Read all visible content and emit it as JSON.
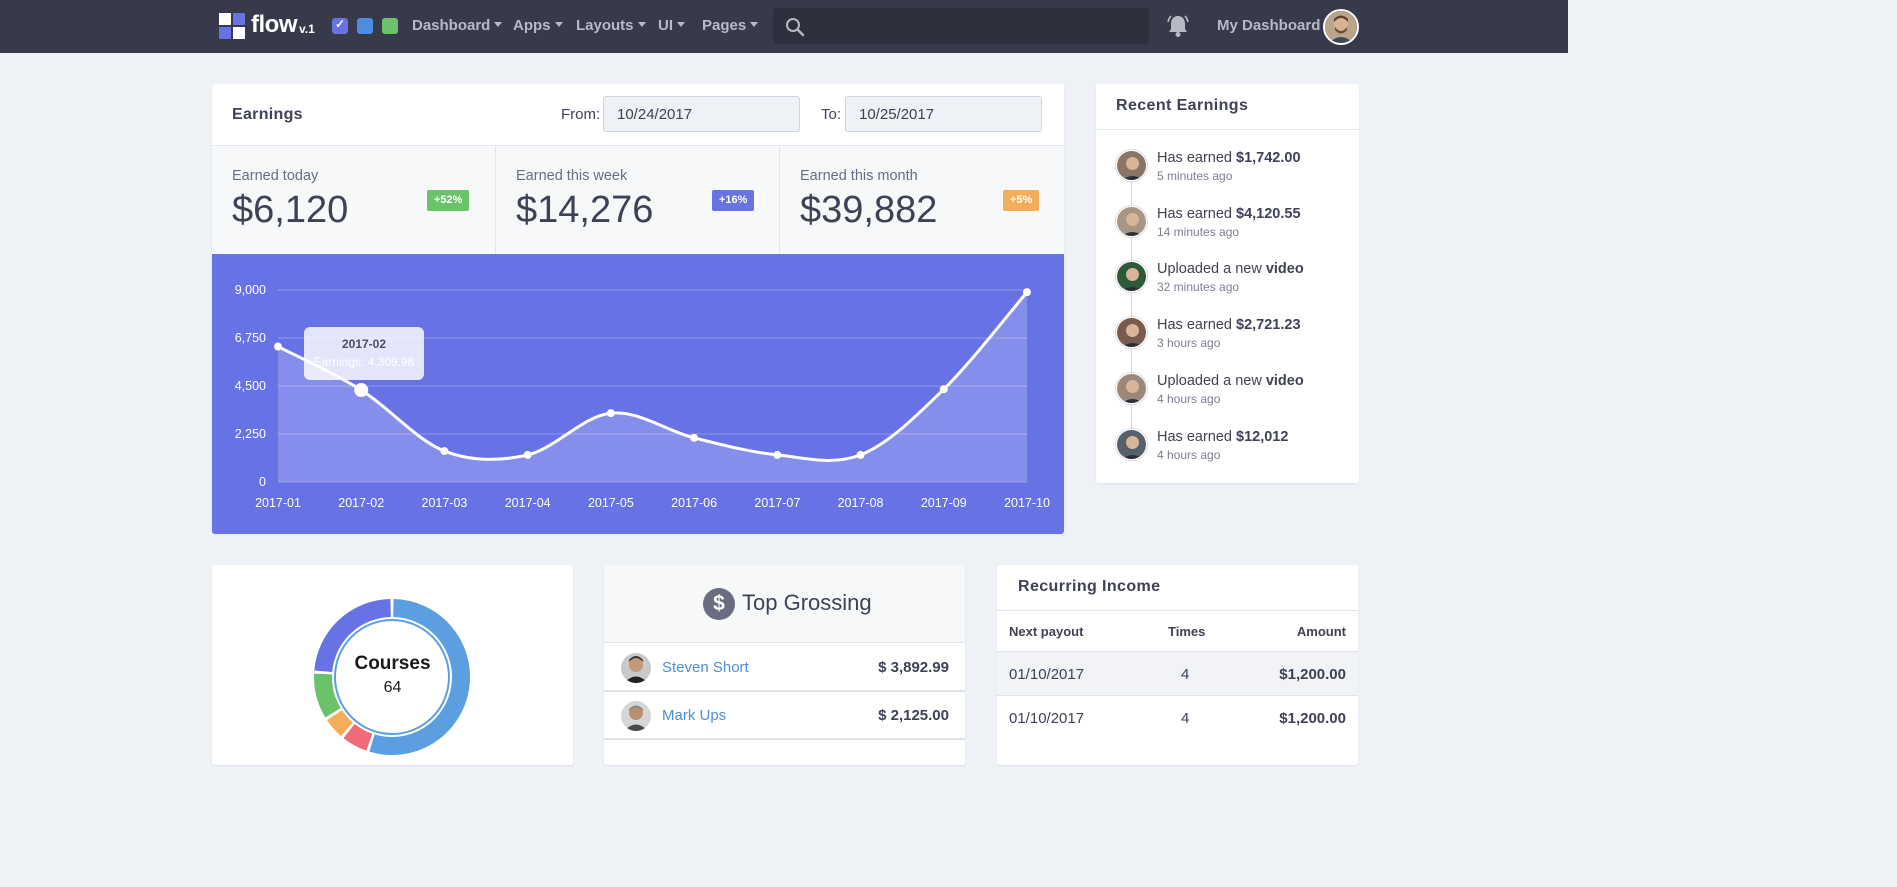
{
  "app": {
    "brand": "flow",
    "version": "v.1",
    "swatches": [
      "#6772e5",
      "#4c8dde",
      "#6cc26a"
    ]
  },
  "nav": {
    "items": [
      {
        "label": "Dashboard"
      },
      {
        "label": "Apps"
      },
      {
        "label": "Layouts"
      },
      {
        "label": "UI"
      },
      {
        "label": "Pages"
      }
    ],
    "search_placeholder": "",
    "user_label": "My Dashboard"
  },
  "earnings": {
    "title": "Earnings",
    "from_label": "From:",
    "from_value": "10/24/2017",
    "to_label": "To:",
    "to_value": "10/25/2017",
    "stats": [
      {
        "label": "Earned today",
        "value": "$6,120",
        "badge": "+52%",
        "badge_color": "#6cc26a"
      },
      {
        "label": "Earned this week",
        "value": "$14,276",
        "badge": "+16%",
        "badge_color": "#6772e5"
      },
      {
        "label": "Earned this month",
        "value": "$39,882",
        "badge": "+5%",
        "badge_color": "#f4ad5a"
      }
    ],
    "tooltip": {
      "title": "2017-02",
      "text": "Earnings: 4,309.98"
    }
  },
  "chart_data": {
    "type": "area",
    "categories": [
      "2017-01",
      "2017-02",
      "2017-03",
      "2017-04",
      "2017-05",
      "2017-06",
      "2017-07",
      "2017-08",
      "2017-09",
      "2017-10"
    ],
    "series": [
      {
        "values": [
          6350,
          4309.98,
          1450,
          1270,
          3230,
          2070,
          1270,
          1270,
          4350,
          8900
        ]
      }
    ],
    "yticks": [
      "9,000",
      "6,750",
      "4,500",
      "2,250",
      "0"
    ],
    "ylim": [
      0,
      9000
    ],
    "grid": true,
    "background": "#6772e5",
    "line_color": "#ffffff"
  },
  "recent": {
    "title": "Recent Earnings",
    "items": [
      {
        "prefix": "Has earned ",
        "strong": "$1,742.00",
        "time": "5 minutes ago",
        "avatar_color": "#8a7564"
      },
      {
        "prefix": "Has earned ",
        "strong": "$4,120.55",
        "time": "14 minutes ago",
        "avatar_color": "#a89684"
      },
      {
        "prefix": "Uploaded a new ",
        "strong": "video",
        "time": "32 minutes ago",
        "avatar_color": "#2f5a3a"
      },
      {
        "prefix": "Has earned ",
        "strong": "$2,721.23",
        "time": "3 hours ago",
        "avatar_color": "#7a5a4c"
      },
      {
        "prefix": "Uploaded a new ",
        "strong": "video",
        "time": "4 hours ago",
        "avatar_color": "#9b8878"
      },
      {
        "prefix": "Has earned ",
        "strong": "$12,012",
        "time": "4 hours ago",
        "avatar_color": "#56606b"
      }
    ]
  },
  "courses": {
    "title": "Courses",
    "value": "64",
    "segments": [
      {
        "color": "#5b9fe0",
        "fraction": 0.55
      },
      {
        "color": "#f16a7a",
        "fraction": 0.06
      },
      {
        "color": "#f4ad5a",
        "fraction": 0.05
      },
      {
        "color": "#6cc26a",
        "fraction": 0.1
      },
      {
        "color": "#6772e5",
        "fraction": 0.24
      }
    ]
  },
  "top_grossing": {
    "title": "Top Grossing",
    "icon": "dollar-icon",
    "rows": [
      {
        "name": "Steven Short",
        "amount": "$ 3,892.99"
      },
      {
        "name": "Mark Ups",
        "amount": "$ 2,125.00"
      }
    ]
  },
  "recurring": {
    "title": "Recurring Income",
    "headers": [
      "Next payout",
      "Times",
      "Amount"
    ],
    "rows": [
      {
        "date": "01/10/2017",
        "times": "4",
        "amount": "$1,200.00"
      },
      {
        "date": "01/10/2017",
        "times": "4",
        "amount": "$1,200.00"
      }
    ]
  }
}
